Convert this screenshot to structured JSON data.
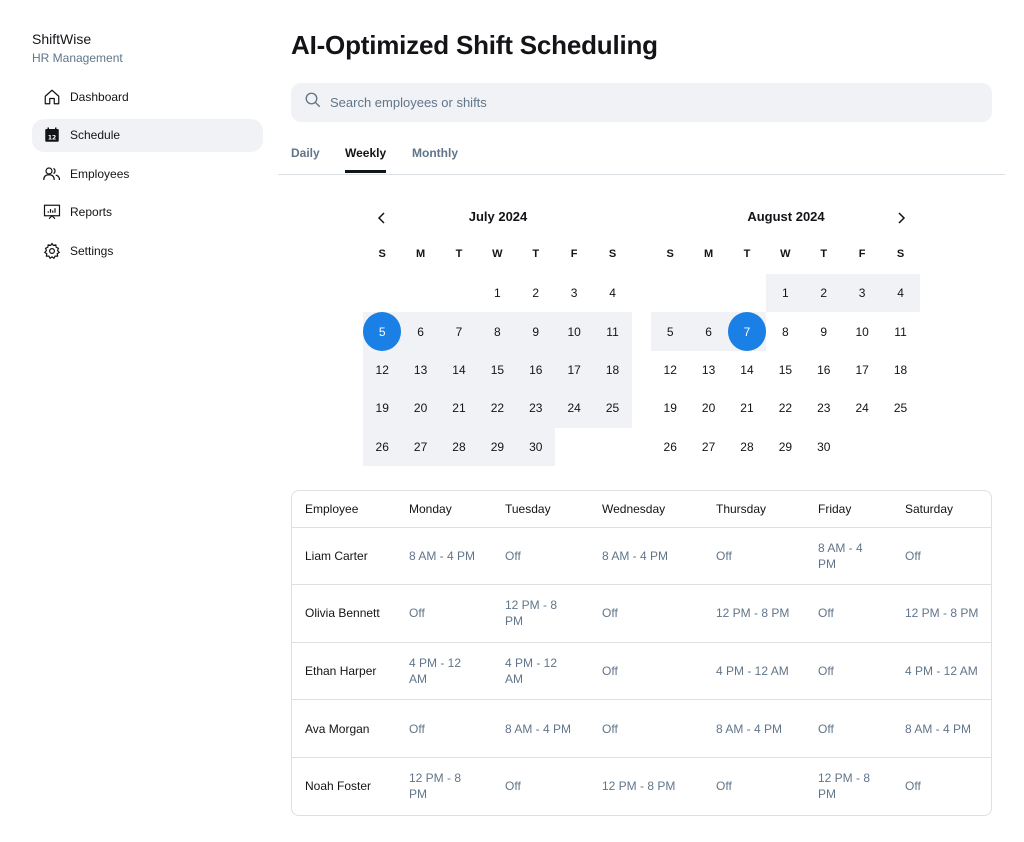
{
  "brand": {
    "name": "ShiftWise",
    "subtitle": "HR Management"
  },
  "sidebar": {
    "items": [
      {
        "label": "Dashboard",
        "icon": "home-icon",
        "active": false
      },
      {
        "label": "Schedule",
        "icon": "calendar-icon",
        "active": true
      },
      {
        "label": "Employees",
        "icon": "users-icon",
        "active": false
      },
      {
        "label": "Reports",
        "icon": "presentation-chart-icon",
        "active": false
      },
      {
        "label": "Settings",
        "icon": "gear-icon",
        "active": false
      }
    ]
  },
  "page": {
    "title": "AI-Optimized Shift Scheduling"
  },
  "search": {
    "placeholder": "Search employees or shifts"
  },
  "tabs": [
    {
      "label": "Daily",
      "active": false
    },
    {
      "label": "Weekly",
      "active": true
    },
    {
      "label": "Monthly",
      "active": false
    }
  ],
  "calendars": {
    "left": {
      "title": "July 2024",
      "weekdays": [
        "S",
        "M",
        "T",
        "W",
        "T",
        "F",
        "S"
      ],
      "start_offset": 3,
      "days": 30,
      "selected": 5,
      "highlight_from": 5,
      "highlight_to": 30
    },
    "right": {
      "title": "August 2024",
      "weekdays": [
        "S",
        "M",
        "T",
        "W",
        "T",
        "F",
        "S"
      ],
      "start_offset": 3,
      "days": 30,
      "selected": 7,
      "highlight_from": 1,
      "highlight_to": 7
    }
  },
  "schedule": {
    "headers": [
      "Employee",
      "Monday",
      "Tuesday",
      "Wednesday",
      "Thursday",
      "Friday",
      "Saturday"
    ],
    "rows": [
      [
        "Liam Carter",
        "8 AM - 4 PM",
        "Off",
        "8 AM - 4 PM",
        "Off",
        "8 AM - 4 PM",
        "Off"
      ],
      [
        "Olivia Bennett",
        "Off",
        "12 PM - 8 PM",
        "Off",
        "12 PM - 8 PM",
        "Off",
        "12 PM - 8 PM"
      ],
      [
        "Ethan Harper",
        "4 PM - 12 AM",
        "4 PM - 12 AM",
        "Off",
        "4 PM - 12 AM",
        "Off",
        "4 PM - 12 AM"
      ],
      [
        "Ava Morgan",
        "Off",
        "8 AM - 4 PM",
        "Off",
        "8 AM - 4 PM",
        "Off",
        "8 AM - 4 PM"
      ],
      [
        "Noah Foster",
        "12 PM - 8 PM",
        "Off",
        "12 PM - 8 PM",
        "Off",
        "12 PM - 8 PM",
        "Off"
      ]
    ]
  },
  "colors": {
    "accent": "#1a80e5",
    "muted_text": "#61758a",
    "surface": "#f0f2f5",
    "border": "#dbe0e5"
  }
}
